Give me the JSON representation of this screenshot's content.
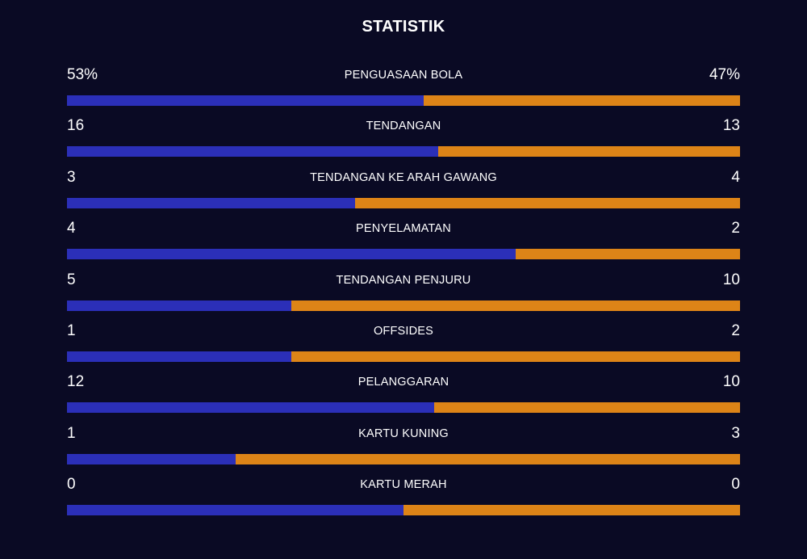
{
  "title": "STATISTIK",
  "colors": {
    "home": "#2b2fb8",
    "away": "#dd8417",
    "background": "#0a0a24"
  },
  "stats": [
    {
      "label": "PENGUASAAN BOLA",
      "home": "53%",
      "away": "47%",
      "home_share": 0.53
    },
    {
      "label": "TENDANGAN",
      "home": "16",
      "away": "13",
      "home_share": 0.5517
    },
    {
      "label": "TENDANGAN KE ARAH GAWANG",
      "home": "3",
      "away": "4",
      "home_share": 0.4286
    },
    {
      "label": "PENYELAMATAN",
      "home": "4",
      "away": "2",
      "home_share": 0.6667
    },
    {
      "label": "TENDANGAN PENJURU",
      "home": "5",
      "away": "10",
      "home_share": 0.3333
    },
    {
      "label": "OFFSIDES",
      "home": "1",
      "away": "2",
      "home_share": 0.3333
    },
    {
      "label": "PELANGGARAN",
      "home": "12",
      "away": "10",
      "home_share": 0.5455
    },
    {
      "label": "KARTU KUNING",
      "home": "1",
      "away": "3",
      "home_share": 0.25
    },
    {
      "label": "KARTU MERAH",
      "home": "0",
      "away": "0",
      "home_share": 0.5
    }
  ]
}
